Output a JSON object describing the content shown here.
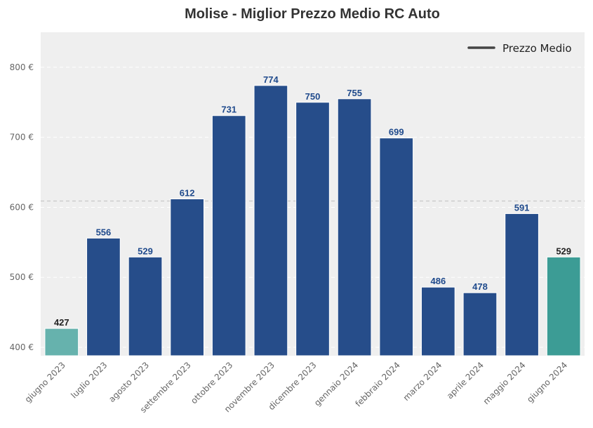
{
  "chart_data": {
    "type": "bar",
    "title": "Molise - Miglior Prezzo Medio RC Auto",
    "xlabel": "",
    "ylabel": "",
    "categories": [
      "giugno 2023",
      "luglio 2023",
      "agosto 2023",
      "settembre 2023",
      "ottobre 2023",
      "novembre 2023",
      "dicembre 2023",
      "gennaio 2024",
      "febbraio 2024",
      "marzo 2024",
      "aprile 2024",
      "maggio 2024",
      "giugno 2024"
    ],
    "values": [
      427,
      556,
      529,
      612,
      731,
      774,
      750,
      755,
      699,
      486,
      478,
      591,
      529
    ],
    "bar_colors": [
      "#66b2ad",
      "#264d8a",
      "#264d8a",
      "#264d8a",
      "#264d8a",
      "#264d8a",
      "#264d8a",
      "#264d8a",
      "#264d8a",
      "#264d8a",
      "#264d8a",
      "#264d8a",
      "#3c9c95"
    ],
    "label_colors": [
      "#222222",
      "#1f4a8c",
      "#1f4a8c",
      "#1f4a8c",
      "#1f4a8c",
      "#1f4a8c",
      "#1f4a8c",
      "#1f4a8c",
      "#1f4a8c",
      "#1f4a8c",
      "#1f4a8c",
      "#1f4a8c",
      "#222222"
    ],
    "ylim": [
      388,
      850
    ],
    "yticks": [
      400,
      500,
      600,
      700,
      800
    ],
    "ytick_labels": [
      "400 €",
      "500 €",
      "600 €",
      "700 €",
      "800 €"
    ],
    "reference_line": {
      "value": 609,
      "style": "dashed"
    },
    "legend": {
      "entries": [
        "Prezzo Medio"
      ],
      "placement": "top-right",
      "line_color": "#444444"
    },
    "grid": true,
    "background": "#efefef"
  }
}
